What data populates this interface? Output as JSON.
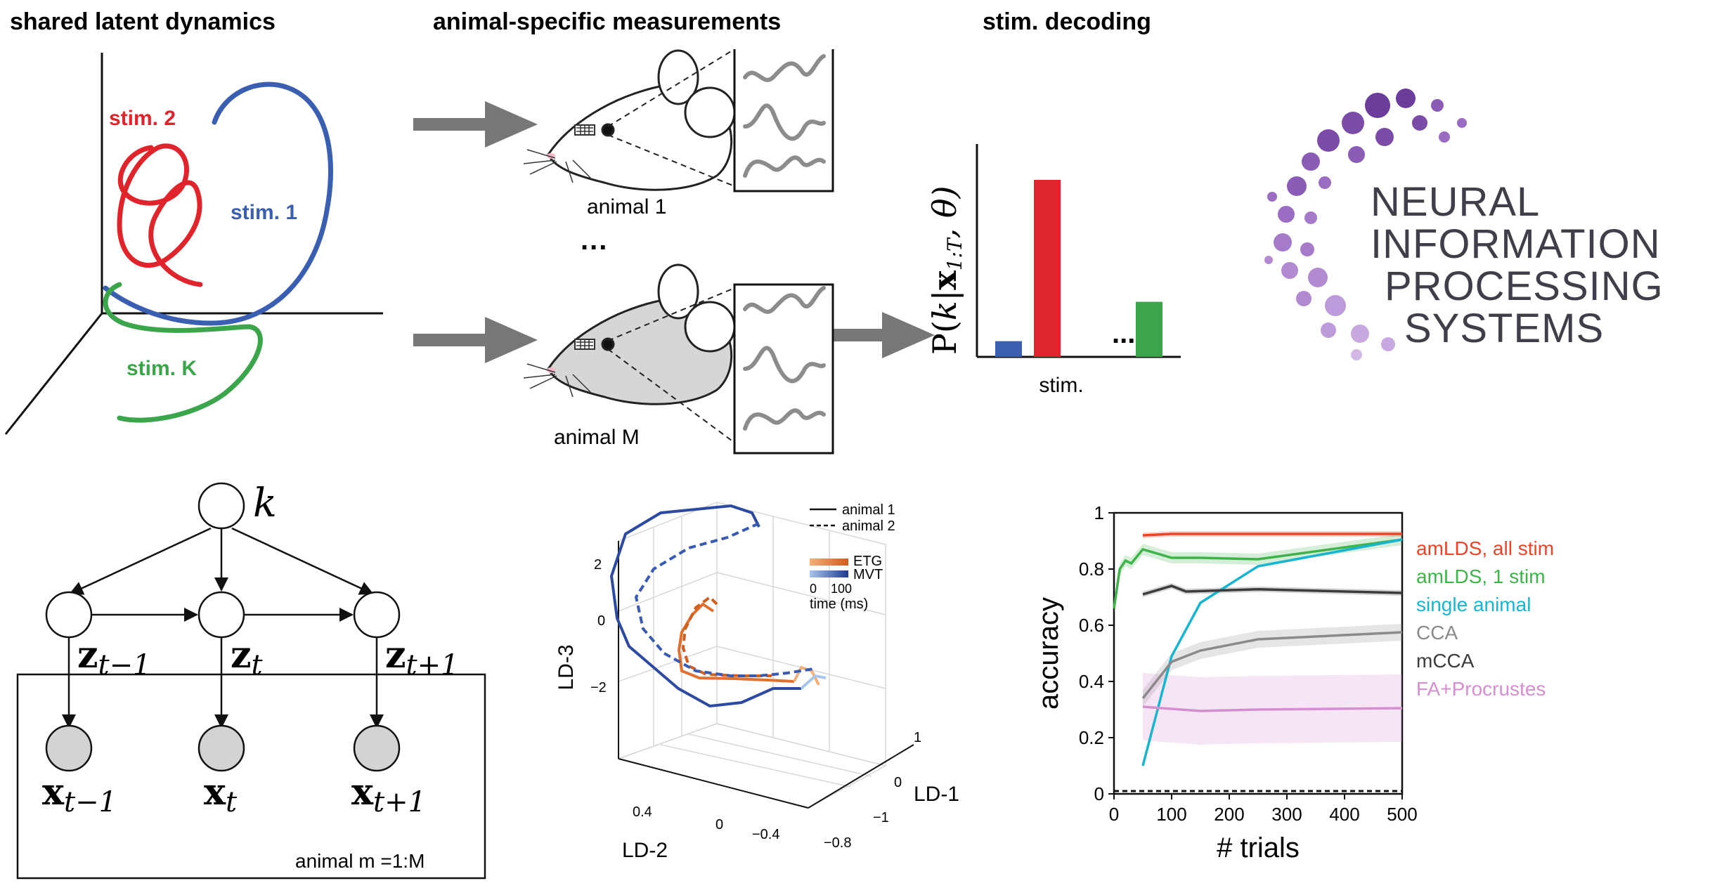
{
  "headers": {
    "shared": "shared latent dynamics",
    "animal": "animal-specific measurements",
    "decoding": "stim. decoding"
  },
  "latent": {
    "stim2": "stim. 2",
    "stim1": "stim. 1",
    "stimK": "stim. K",
    "colors": {
      "stim1": "#3a5fb0",
      "stim2": "#e0242b",
      "stimK": "#3aa54b"
    }
  },
  "animals": {
    "animal1": "animal 1",
    "animalM": "animal M",
    "dots": "..."
  },
  "decoding_chart": {
    "ylabel_prefix": "P(",
    "ylabel_k": "k",
    "ylabel_bar": "|",
    "ylabel_x": "x",
    "ylabel_sub": "1:T",
    "ylabel_rest": ", θ)",
    "xlabel": "stim.",
    "dots": "...",
    "bars": [
      {
        "name": "stim. 1",
        "value": 0.08,
        "color": "#3a5fb0"
      },
      {
        "name": "stim. 2",
        "value": 0.9,
        "color": "#e0242b"
      },
      {
        "name": "stim. K",
        "value": 0.28,
        "color": "#3aa54b"
      }
    ]
  },
  "neurips": {
    "line1": "NEURAL",
    "line2": "INFORMATION",
    "line3": "PROCESSING",
    "line4": "SYSTEMS"
  },
  "graphical_model": {
    "k": "k",
    "z_prev": "z",
    "z_prev_sub": "t−1",
    "z_t": "z",
    "z_t_sub": "t",
    "z_next": "z",
    "z_next_sub": "t+1",
    "x_prev": "x",
    "x_prev_sub": "t−1",
    "x_t": "x",
    "x_t_sub": "t",
    "x_next": "x",
    "x_next_sub": "t+1",
    "plate": "animal  m =1:M"
  },
  "latent3d": {
    "legend_solid": "animal 1",
    "legend_dashed": "animal 2",
    "etg": "ETG",
    "mvt": "MVT",
    "time_start": "0",
    "time_end": "100",
    "time_label": "time (ms)",
    "zlabel": "LD-3",
    "xlabel": "LD-2",
    "ylabel": "LD-1",
    "z_ticks": [
      "2",
      "0",
      "−2"
    ],
    "x_ticks": [
      "0.4",
      "0",
      "−0.4",
      "−0.8"
    ],
    "y_ticks": [
      "1",
      "0",
      "−1"
    ]
  },
  "chart_data": {
    "type": "line",
    "xlabel": "# trials",
    "ylabel": "accuracy",
    "xlim": [
      0,
      500
    ],
    "ylim": [
      0,
      1
    ],
    "x_ticks": [
      "0",
      "100",
      "200",
      "300",
      "400",
      "500"
    ],
    "y_ticks": [
      "0",
      "0.2",
      "0.4",
      "0.6",
      "0.8",
      "1"
    ],
    "chance_level": 0.01,
    "series": [
      {
        "name": "amLDS, all stim",
        "color": "#e8452a",
        "band": 0.01,
        "x": [
          50,
          100,
          150,
          250,
          500
        ],
        "y": [
          0.92,
          0.925,
          0.925,
          0.925,
          0.925
        ]
      },
      {
        "name": "amLDS, 1 stim",
        "color": "#3fb34a",
        "band": 0.02,
        "x": [
          0,
          10,
          20,
          30,
          50,
          100,
          150,
          250,
          500
        ],
        "y": [
          0.66,
          0.8,
          0.83,
          0.82,
          0.87,
          0.84,
          0.84,
          0.835,
          0.905
        ]
      },
      {
        "name": "single animal",
        "color": "#19b5cf",
        "band": 0.005,
        "x": [
          50,
          100,
          150,
          250,
          500
        ],
        "y": [
          0.1,
          0.49,
          0.68,
          0.81,
          0.905
        ]
      },
      {
        "name": "CCA",
        "color": "#8a8a8a",
        "band": 0.03,
        "x": [
          50,
          100,
          150,
          250,
          500
        ],
        "y": [
          0.34,
          0.47,
          0.51,
          0.55,
          0.575
        ]
      },
      {
        "name": "mCCA",
        "color": "#3c3c3c",
        "band": 0.01,
        "x": [
          50,
          100,
          125,
          250,
          500
        ],
        "y": [
          0.71,
          0.74,
          0.72,
          0.728,
          0.715
        ]
      },
      {
        "name": "FA+Procrustes",
        "color": "#d48fd0",
        "band": 0.12,
        "x": [
          50,
          150,
          250,
          500
        ],
        "y": [
          0.31,
          0.295,
          0.3,
          0.305
        ]
      }
    ]
  }
}
